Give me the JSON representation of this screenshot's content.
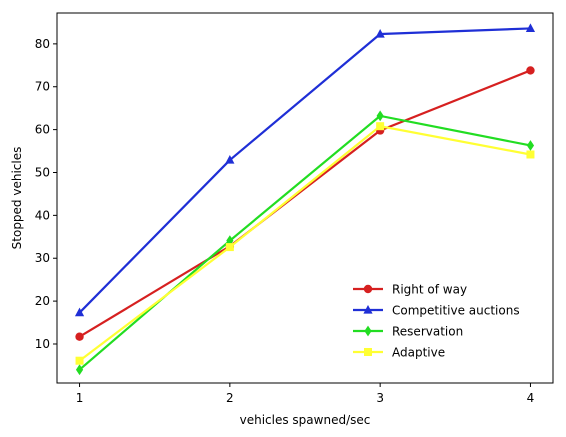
{
  "chart_data": {
    "type": "line",
    "title": "",
    "xlabel": "vehicles spawned/sec",
    "ylabel": "Stopped vehicles",
    "x": [
      1,
      2,
      3,
      4
    ],
    "xticks": [
      "1",
      "2",
      "3",
      "4"
    ],
    "yticks": [
      "10",
      "20",
      "30",
      "40",
      "50",
      "60",
      "70",
      "80"
    ],
    "xlim": [
      0.85,
      4.15
    ],
    "ylim": [
      0.9,
      87.2
    ],
    "grid": false,
    "legend_position": "lower-right",
    "series": [
      {
        "name": "Right of way",
        "values": [
          11.7,
          32.8,
          59.8,
          73.8
        ],
        "color": "#d62020",
        "marker": "circle"
      },
      {
        "name": "Competitive auctions",
        "values": [
          17.3,
          52.9,
          82.3,
          83.6
        ],
        "color": "#1f2fd6",
        "marker": "triangle"
      },
      {
        "name": "Reservation",
        "values": [
          4.0,
          34.1,
          63.2,
          56.3
        ],
        "color": "#22dd22",
        "marker": "diamond"
      },
      {
        "name": "Adaptive",
        "values": [
          6.1,
          32.6,
          60.8,
          54.2
        ],
        "color": "#ffff33",
        "marker": "square"
      }
    ]
  }
}
